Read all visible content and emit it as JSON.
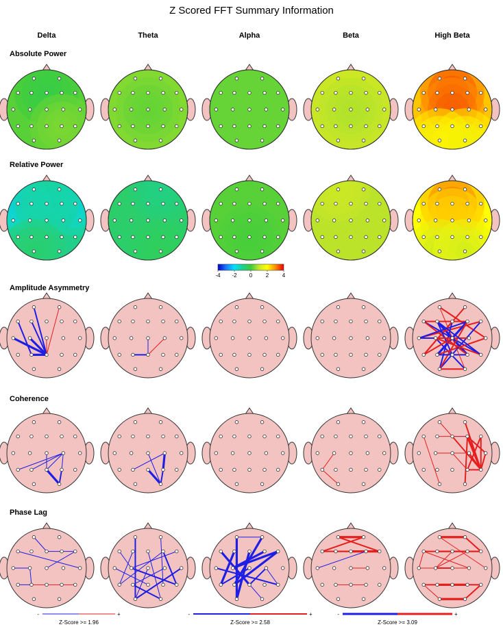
{
  "title": "Z Scored FFT Summary Information",
  "bands": [
    "Delta",
    "Theta",
    "Alpha",
    "Beta",
    "High Beta"
  ],
  "rows": [
    {
      "label": "Absolute Power",
      "kind": "map"
    },
    {
      "label": "Relative Power",
      "kind": "map"
    },
    {
      "label": "Amplitude Asymmetry",
      "kind": "conn"
    },
    {
      "label": "Coherence",
      "kind": "conn"
    },
    {
      "label": "Phase Lag",
      "kind": "conn"
    }
  ],
  "colorbar": {
    "ticks": [
      "-4",
      "-2",
      "0",
      "2",
      "4"
    ],
    "min": -4,
    "max": 4,
    "colors": [
      "#0000c8",
      "#1e78ff",
      "#00e0ff",
      "#20d08a",
      "#3ccc3c",
      "#c8e628",
      "#ffff00",
      "#ff8c00",
      "#e60000"
    ]
  },
  "z_maps": {
    "Absolute Power": {
      "Delta": {
        "base": 0.2,
        "blobs": [
          {
            "e": "Fz",
            "z": -0.8
          },
          {
            "e": "P4",
            "z": 0.6
          }
        ]
      },
      "Theta": {
        "base": 0.5,
        "blobs": [
          {
            "e": "Cz",
            "z": -0.5
          }
        ]
      },
      "Alpha": {
        "base": 0.3,
        "blobs": []
      },
      "Beta": {
        "base": 1.0,
        "blobs": [
          {
            "e": "Fz",
            "z": 0.3
          },
          {
            "e": "Cz",
            "z": -0.4
          }
        ]
      },
      "High Beta": {
        "base": 2.5,
        "blobs": [
          {
            "e": "Fz",
            "z": 2.5
          },
          {
            "e": "Cz",
            "z": 2.0
          },
          {
            "e": "O1",
            "z": -1.5
          },
          {
            "e": "O2",
            "z": -1.5
          }
        ]
      }
    },
    "Relative Power": {
      "Delta": {
        "base": -1.0,
        "blobs": [
          {
            "e": "F7",
            "z": -1.8
          },
          {
            "e": "F8",
            "z": -1.5
          },
          {
            "e": "Fz",
            "z": -0.7
          },
          {
            "e": "O1",
            "z": 0.8
          }
        ]
      },
      "Theta": {
        "base": -0.6,
        "blobs": [
          {
            "e": "Fp2",
            "z": -0.7
          },
          {
            "e": "O2",
            "z": 0.4
          }
        ]
      },
      "Alpha": {
        "base": 0.2,
        "blobs": [
          {
            "e": "Pz",
            "z": -0.3
          }
        ]
      },
      "Beta": {
        "base": 0.9,
        "blobs": [
          {
            "e": "Fp1",
            "z": 0.4
          }
        ]
      },
      "High Beta": {
        "base": 2.0,
        "blobs": [
          {
            "e": "Fz",
            "z": 2.8
          },
          {
            "e": "Cz",
            "z": 1.0
          },
          {
            "e": "O1",
            "z": -1.8
          },
          {
            "e": "O2",
            "z": -1.6
          }
        ]
      }
    }
  },
  "connections": {
    "Amplitude Asymmetry": {
      "Delta": [
        [
          "F7",
          "P3",
          "b",
          2
        ],
        [
          "Fp1",
          "Pz",
          "b",
          2
        ],
        [
          "F3",
          "Pz",
          "b",
          2
        ],
        [
          "T3",
          "Pz",
          "b",
          3
        ],
        [
          "C3",
          "Pz",
          "b",
          3
        ],
        [
          "P3",
          "Pz",
          "b",
          3
        ],
        [
          "Cz",
          "Pz",
          "r",
          1
        ],
        [
          "Fp2",
          "Pz",
          "r",
          1
        ]
      ],
      "Theta": [
        [
          "P3",
          "Pz",
          "b",
          2
        ],
        [
          "C4",
          "Pz",
          "r",
          1
        ],
        [
          "Cz",
          "Pz",
          "b",
          1
        ]
      ],
      "Alpha": [],
      "Beta": [],
      "High Beta": [
        [
          "F7",
          "F4",
          "r",
          2
        ],
        [
          "F3",
          "P4",
          "b",
          3
        ],
        [
          "Fp1",
          "T4",
          "r",
          2
        ],
        [
          "T3",
          "F8",
          "r",
          2
        ],
        [
          "C3",
          "O2",
          "b",
          2
        ],
        [
          "P3",
          "F4",
          "b",
          3
        ],
        [
          "T5",
          "Fz",
          "r",
          2
        ],
        [
          "F7",
          "T6",
          "b",
          2
        ],
        [
          "Fz",
          "O1",
          "b",
          2
        ],
        [
          "Cz",
          "T5",
          "r",
          2
        ],
        [
          "C4",
          "T3",
          "b",
          2
        ],
        [
          "P4",
          "F7",
          "r",
          2
        ],
        [
          "T4",
          "P3",
          "r",
          2
        ],
        [
          "F8",
          "O1",
          "b",
          2
        ],
        [
          "Fp2",
          "T5",
          "r",
          2
        ],
        [
          "Pz",
          "F3",
          "b",
          2
        ],
        [
          "O1",
          "F4",
          "r",
          2
        ],
        [
          "T6",
          "C3",
          "r",
          2
        ],
        [
          "F4",
          "T3",
          "b",
          2
        ],
        [
          "C3",
          "C4",
          "r",
          2
        ],
        [
          "P3",
          "P4",
          "b",
          2
        ],
        [
          "O1",
          "O2",
          "r",
          2
        ],
        [
          "Fp1",
          "O2",
          "r",
          1
        ],
        [
          "F3",
          "T6",
          "b",
          2
        ]
      ]
    },
    "Coherence": {
      "Delta": [
        [
          "T5",
          "C4",
          "b",
          1
        ],
        [
          "P3",
          "C4",
          "b",
          1
        ],
        [
          "Pz",
          "C4",
          "b",
          1
        ],
        [
          "Cz",
          "Pz",
          "b",
          1
        ],
        [
          "Pz",
          "O2",
          "b",
          3
        ],
        [
          "P4",
          "O2",
          "b",
          2
        ],
        [
          "C4",
          "P4",
          "b",
          1
        ]
      ],
      "Theta": [
        [
          "P3",
          "C4",
          "b",
          1
        ],
        [
          "Pz",
          "O2",
          "b",
          3
        ],
        [
          "C4",
          "P4",
          "b",
          3
        ],
        [
          "P4",
          "O2",
          "b",
          2
        ],
        [
          "Cz",
          "O2",
          "b",
          1
        ]
      ],
      "Alpha": [],
      "Beta": [
        [
          "T5",
          "C3",
          "r",
          1
        ],
        [
          "T5",
          "O1",
          "r",
          1
        ]
      ],
      "High Beta": [
        [
          "Fz",
          "F4",
          "b",
          1
        ],
        [
          "F3",
          "F4",
          "r",
          1
        ],
        [
          "Fp1",
          "Fz",
          "r",
          1
        ],
        [
          "F4",
          "T4",
          "r",
          2
        ],
        [
          "F8",
          "P4",
          "r",
          2
        ],
        [
          "F4",
          "T6",
          "r",
          3
        ],
        [
          "Fz",
          "T6",
          "r",
          2
        ],
        [
          "C4",
          "T6",
          "r",
          2
        ],
        [
          "T4",
          "T6",
          "r",
          2
        ],
        [
          "P4",
          "T6",
          "r",
          2
        ],
        [
          "F8",
          "T6",
          "r",
          2
        ],
        [
          "F7",
          "O1",
          "r",
          1
        ],
        [
          "C3",
          "C4",
          "r",
          1
        ],
        [
          "Cz",
          "P4",
          "r",
          1
        ],
        [
          "F4",
          "O2",
          "r",
          2
        ],
        [
          "Fp2",
          "T6",
          "r",
          2
        ]
      ]
    },
    "Phase Lag": {
      "Delta": [
        [
          "Fp1",
          "Fz",
          "b",
          1
        ],
        [
          "Fz",
          "F8",
          "b",
          1
        ],
        [
          "F7",
          "T4",
          "b",
          1
        ],
        [
          "T3",
          "C3",
          "b",
          1
        ],
        [
          "C3",
          "P3",
          "b",
          1
        ],
        [
          "Cz",
          "F8",
          "b",
          1
        ],
        [
          "P3",
          "Pz",
          "r",
          1
        ],
        [
          "Pz",
          "P4",
          "r",
          1
        ],
        [
          "P4",
          "T6",
          "r",
          1
        ],
        [
          "T5",
          "P3",
          "b",
          1
        ]
      ],
      "Theta": [
        [
          "Fp1",
          "O1",
          "b",
          2
        ],
        [
          "F7",
          "C3",
          "b",
          1
        ],
        [
          "F3",
          "T5",
          "b",
          1
        ],
        [
          "Fz",
          "O2",
          "b",
          1
        ],
        [
          "F8",
          "C3",
          "b",
          1
        ],
        [
          "F4",
          "T6",
          "b",
          2
        ],
        [
          "Fp2",
          "P4",
          "b",
          1
        ],
        [
          "T3",
          "Pz",
          "b",
          1
        ],
        [
          "C3",
          "T6",
          "b",
          2
        ],
        [
          "O1",
          "T4",
          "b",
          2
        ],
        [
          "P3",
          "O2",
          "b",
          2
        ],
        [
          "T5",
          "F4",
          "b",
          1
        ],
        [
          "Cz",
          "O1",
          "b",
          1
        ],
        [
          "C4",
          "P3",
          "b",
          1
        ]
      ],
      "Alpha": [
        [
          "Fp1",
          "O1",
          "b",
          3
        ],
        [
          "F7",
          "Pz",
          "b",
          3
        ],
        [
          "F3",
          "T5",
          "b",
          3
        ],
        [
          "Fz",
          "O1",
          "b",
          3
        ],
        [
          "F8",
          "C3",
          "b",
          3
        ],
        [
          "Fp2",
          "P3",
          "b",
          3
        ],
        [
          "T3",
          "T6",
          "b",
          2
        ],
        [
          "C3",
          "F4",
          "b",
          3
        ],
        [
          "Cz",
          "T5",
          "b",
          2
        ],
        [
          "P3",
          "F8",
          "b",
          3
        ],
        [
          "O1",
          "Fz",
          "b",
          3
        ],
        [
          "T5",
          "F3",
          "b",
          2
        ],
        [
          "Pz",
          "C4",
          "b",
          2
        ],
        [
          "F7",
          "O2",
          "b",
          1
        ],
        [
          "C4",
          "T6",
          "b",
          1
        ],
        [
          "Fp1",
          "Fp2",
          "b",
          1
        ]
      ],
      "Beta": [
        [
          "Fp1",
          "Fp2",
          "r",
          3
        ],
        [
          "F7",
          "F8",
          "r",
          2
        ],
        [
          "F7",
          "Fp2",
          "r",
          2
        ],
        [
          "F3",
          "F4",
          "r",
          2
        ],
        [
          "Fz",
          "F8",
          "r",
          3
        ],
        [
          "Fp1",
          "F8",
          "r",
          2
        ],
        [
          "T3",
          "F4",
          "b",
          1
        ],
        [
          "P3",
          "Pz",
          "r",
          1
        ],
        [
          "Pz",
          "P4",
          "r",
          1
        ],
        [
          "Cz",
          "C4",
          "r",
          1
        ]
      ],
      "High Beta": [
        [
          "Fp1",
          "Fp2",
          "r",
          3
        ],
        [
          "F7",
          "F8",
          "r",
          2
        ],
        [
          "F3",
          "F8",
          "r",
          2
        ],
        [
          "Fp1",
          "T4",
          "r",
          1
        ],
        [
          "F7",
          "C4",
          "r",
          1
        ],
        [
          "Fz",
          "C3",
          "r",
          1
        ],
        [
          "C3",
          "F4",
          "r",
          1
        ],
        [
          "T3",
          "C4",
          "r",
          1
        ],
        [
          "C3",
          "Cz",
          "r",
          2
        ],
        [
          "P3",
          "Pz",
          "r",
          3
        ],
        [
          "Pz",
          "P4",
          "r",
          3
        ],
        [
          "T5",
          "O1",
          "r",
          1
        ],
        [
          "O1",
          "O2",
          "r",
          3
        ],
        [
          "T6",
          "O2",
          "r",
          2
        ],
        [
          "P4",
          "T6",
          "r",
          2
        ],
        [
          "T5",
          "P3",
          "r",
          2
        ],
        [
          "F3",
          "Fz",
          "r",
          2
        ],
        [
          "Fz",
          "F4",
          "r",
          2
        ],
        [
          "Fp2",
          "F8",
          "r",
          2
        ],
        [
          "F7",
          "T3",
          "r",
          1
        ]
      ]
    }
  },
  "legend": [
    {
      "label": "Z-Score >= 1.96",
      "weight": 1
    },
    {
      "label": "Z-Score >= 2.58",
      "weight": 2
    },
    {
      "label": "Z-Score >= 3.09",
      "weight": 3
    }
  ],
  "legend_signs": [
    "-",
    "+"
  ],
  "colors": {
    "positive": "#e51e1e",
    "negative": "#1e1ee5",
    "head_fill": "#f2c3c0",
    "head_stroke": "#333333"
  }
}
